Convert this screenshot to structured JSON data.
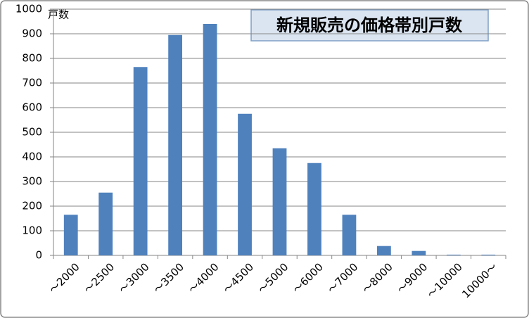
{
  "chart_data": {
    "type": "bar",
    "title": "新規販売の価格帯別戸数",
    "y_label": "戸数",
    "categories": [
      "～2000",
      "～2500",
      "～3000",
      "～3500",
      "～4000",
      "～4500",
      "～5000",
      "～6000",
      "～7000",
      "～8000",
      "～9000",
      "～10000",
      "10000～"
    ],
    "values": [
      165,
      255,
      765,
      895,
      940,
      575,
      435,
      375,
      165,
      38,
      18,
      3,
      3
    ],
    "color": "#4f81bd",
    "ylim": [
      0,
      1000
    ],
    "yticks": [
      0,
      100,
      200,
      300,
      400,
      500,
      600,
      700,
      800,
      900,
      1000
    ],
    "grid": true
  }
}
